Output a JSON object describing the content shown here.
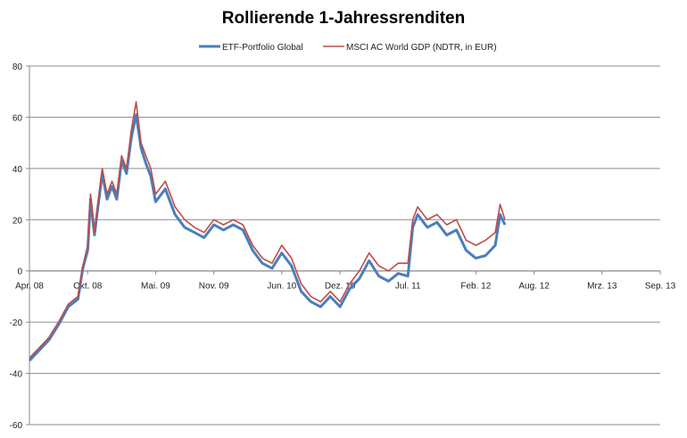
{
  "chart_data": {
    "type": "line",
    "title": "Rollierende 1-Jahressrenditen",
    "xlabel": "",
    "ylabel": "",
    "ylim": [
      -60,
      80
    ],
    "yticks": [
      80,
      60,
      40,
      20,
      0,
      -20,
      -40,
      -60
    ],
    "xlim_months_from_apr08": [
      0,
      65
    ],
    "xtick_labels": [
      "Apr. 08",
      "Okt. 08",
      "Mai. 09",
      "Nov. 09",
      "Jun. 10",
      "Dez. 10",
      "Jul. 11",
      "Feb. 12",
      "Aug. 12",
      "Mrz. 13",
      "Sep. 13"
    ],
    "xtick_months": [
      0,
      6,
      13,
      19,
      26,
      32,
      39,
      46,
      52,
      59,
      65
    ],
    "grid": true,
    "legend_position": "top",
    "x_months": [
      0,
      1,
      2,
      3,
      4,
      5,
      5.5,
      6,
      6.3,
      6.7,
      7,
      7.5,
      8,
      8.5,
      9,
      9.5,
      10,
      10.5,
      11,
      11.5,
      12,
      12.5,
      13,
      14,
      15,
      16,
      17,
      18,
      19,
      20,
      21,
      22,
      23,
      24,
      25,
      26,
      27,
      28,
      29,
      30,
      31,
      32,
      33,
      34,
      35,
      36,
      37,
      38,
      39,
      39.5,
      40,
      41,
      42,
      43,
      44,
      45,
      46,
      47,
      48,
      48.5,
      49
    ],
    "series": [
      {
        "name": "ETF-Portfolio Global",
        "color": "#4a7ebb",
        "values": [
          -35,
          -31,
          -27,
          -21,
          -14,
          -11,
          1,
          8,
          28,
          14,
          23,
          38,
          28,
          33,
          28,
          43,
          38,
          52,
          61,
          48,
          42,
          37,
          27,
          32,
          22,
          17,
          15,
          13,
          18,
          16,
          18,
          16,
          8,
          3,
          1,
          7,
          2,
          -8,
          -12,
          -14,
          -10,
          -14,
          -7,
          -3,
          4,
          -2,
          -4,
          -1,
          -2,
          17,
          22,
          17,
          19,
          14,
          16,
          8,
          5,
          6,
          10,
          22,
          18
        ]
      },
      {
        "name": "MSCI AC World GDP (NDTR,  in EUR)",
        "color": "#be4b48",
        "values": [
          -34,
          -30,
          -26,
          -20,
          -13,
          -10,
          2,
          10,
          30,
          15,
          25,
          40,
          30,
          35,
          30,
          45,
          40,
          55,
          66,
          50,
          45,
          40,
          30,
          35,
          25,
          20,
          17,
          15,
          20,
          18,
          20,
          18,
          10,
          5,
          3,
          10,
          5,
          -5,
          -10,
          -12,
          -8,
          -12,
          -5,
          0,
          7,
          2,
          0,
          3,
          3,
          20,
          25,
          20,
          22,
          18,
          20,
          12,
          10,
          12,
          15,
          26,
          20
        ]
      }
    ]
  }
}
